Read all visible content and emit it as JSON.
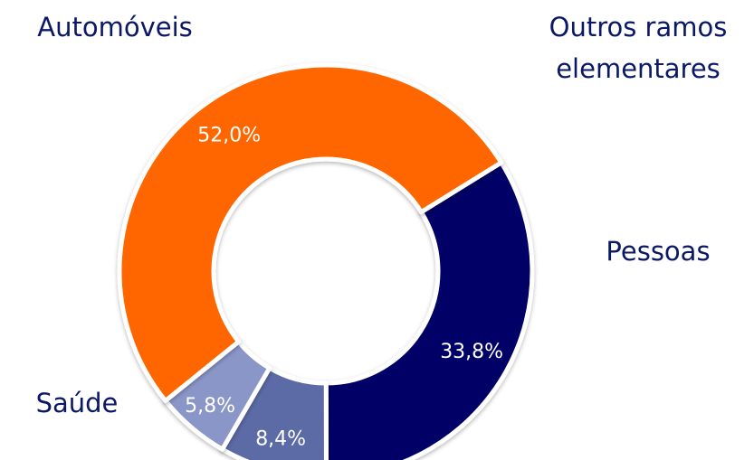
{
  "chart_data": {
    "type": "pie",
    "variant": "donut",
    "title": "",
    "slices": [
      {
        "category": "Automóveis",
        "value": 33.8,
        "value_label": "33,8%",
        "color": "#000066"
      },
      {
        "category": "Outros ramos elementares",
        "category_lines": [
          "Outros ramos",
          "elementares"
        ],
        "value": 8.4,
        "value_label": "8,4%",
        "color": "#5b6aa6"
      },
      {
        "category": "Pessoas",
        "value": 5.8,
        "value_label": "5,8%",
        "color": "#8b96c8"
      },
      {
        "category": "Saúde",
        "value": 52.0,
        "value_label": "52,0%",
        "color": "#ff6600"
      }
    ],
    "legend": "none",
    "label_color": "#0b1866",
    "value_label_color": "#ffffff",
    "separator_color": "#ffffff"
  }
}
